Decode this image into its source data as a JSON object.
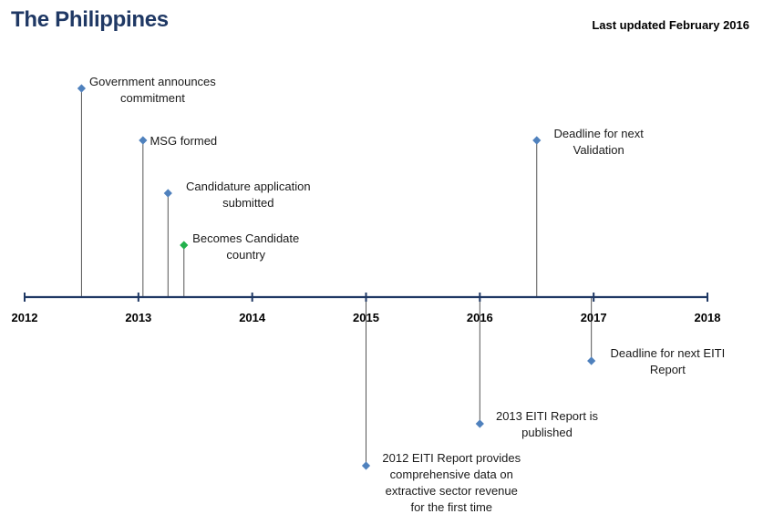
{
  "header": {
    "title": "The Philippines",
    "updated": "Last updated February 2016"
  },
  "colors": {
    "title": "#1f3864",
    "axis": "#1f3864",
    "stem": "#555555",
    "marker": "#4f81bd",
    "marker_highlight": "#22b14c",
    "text": "#1a1a1a"
  },
  "timeline": {
    "year_start": 2012,
    "year_end": 2018,
    "years": [
      "2012",
      "2013",
      "2014",
      "2015",
      "2016",
      "2017",
      "2018"
    ],
    "events": [
      {
        "id": "government-announces-commitment",
        "date": 2012.5,
        "side": "above",
        "level": 4,
        "highlight": false,
        "lines": [
          "Government announces",
          "commitment"
        ]
      },
      {
        "id": "msg-formed",
        "date": 2013.04,
        "side": "above",
        "level": 3,
        "highlight": false,
        "lines": [
          "MSG formed"
        ]
      },
      {
        "id": "candidature-application-submitted",
        "date": 2013.26,
        "side": "above",
        "level": 2,
        "highlight": false,
        "lines": [
          "Candidature application",
          "submitted"
        ]
      },
      {
        "id": "becomes-candidate-country",
        "date": 2013.4,
        "side": "above",
        "level": 1,
        "highlight": true,
        "lines": [
          "Becomes Candidate",
          "country"
        ]
      },
      {
        "id": "deadline-next-validation",
        "date": 2016.5,
        "side": "above",
        "level": 3,
        "highlight": false,
        "lines": [
          "Deadline for next",
          "Validation"
        ]
      },
      {
        "id": "2012-eiti-report",
        "date": 2015.0,
        "side": "below",
        "level": 3,
        "highlight": false,
        "lines": [
          "2012 EITI Report provides",
          "comprehensive data on",
          "extractive sector revenue",
          "for the first time"
        ]
      },
      {
        "id": "2013-eiti-report",
        "date": 2016.0,
        "side": "below",
        "level": 2,
        "highlight": false,
        "lines": [
          "2013 EITI Report is",
          "published"
        ]
      },
      {
        "id": "deadline-next-eiti-report",
        "date": 2016.98,
        "side": "below",
        "level": 1,
        "highlight": false,
        "lines": [
          "Deadline for next EITI",
          "Report"
        ]
      }
    ]
  }
}
